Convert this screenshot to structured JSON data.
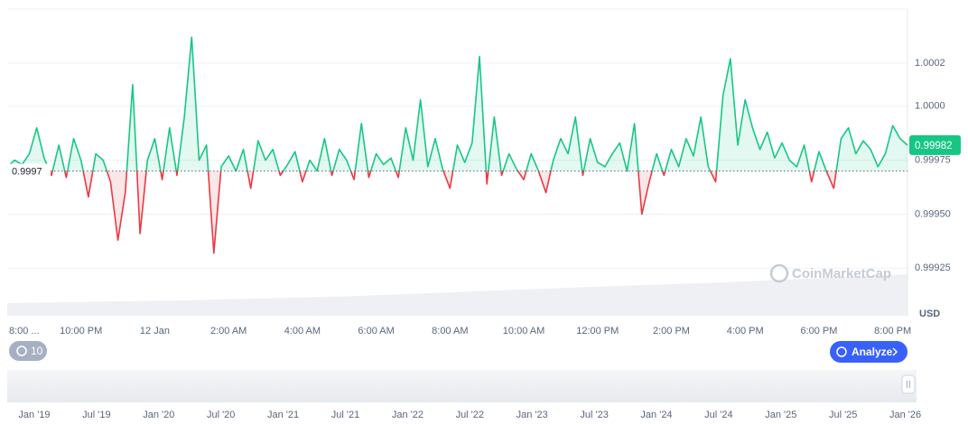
{
  "chart_data": {
    "type": "line",
    "categories": [
      "8:00 ...",
      null,
      null,
      null,
      null,
      null,
      null,
      null,
      null,
      null,
      "10:00 PM",
      null,
      null,
      null,
      null,
      null,
      null,
      null,
      null,
      null,
      "12 Jan",
      null,
      null,
      null,
      null,
      null,
      null,
      null,
      null,
      null,
      "2:00 AM",
      null,
      null,
      null,
      null,
      null,
      null,
      null,
      null,
      null,
      "4:00 AM",
      null,
      null,
      null,
      null,
      null,
      null,
      null,
      null,
      null,
      "6:00 AM",
      null,
      null,
      null,
      null,
      null,
      null,
      null,
      null,
      null,
      "8:00 AM",
      null,
      null,
      null,
      null,
      null,
      null,
      null,
      null,
      null,
      "10:00 AM",
      null,
      null,
      null,
      null,
      null,
      null,
      null,
      null,
      null,
      "12:00 PM",
      null,
      null,
      null,
      null,
      null,
      null,
      null,
      null,
      null,
      "2:00 PM",
      null,
      null,
      null,
      null,
      null,
      null,
      null,
      null,
      null,
      "4:00 PM",
      null,
      null,
      null,
      null,
      null,
      null,
      null,
      null,
      null,
      "6:00 PM",
      null,
      null,
      null,
      null,
      null,
      null,
      null,
      null,
      null,
      "8:00 PM",
      null,
      null
    ],
    "values": [
      0.99972,
      0.99975,
      0.99973,
      0.99978,
      0.9999,
      0.99976,
      0.99968,
      0.99982,
      0.99967,
      0.99985,
      0.99975,
      0.99958,
      0.99978,
      0.99975,
      0.99965,
      0.99938,
      0.9996,
      1.0001,
      0.99941,
      0.99975,
      0.99985,
      0.99966,
      0.9999,
      0.99968,
      0.99995,
      1.00032,
      0.99975,
      0.99982,
      0.99932,
      0.99972,
      0.99977,
      0.9997,
      0.9998,
      0.99962,
      0.99984,
      0.99975,
      0.9998,
      0.99968,
      0.99973,
      0.99979,
      0.99965,
      0.99975,
      0.9997,
      0.99985,
      0.99968,
      0.9998,
      0.99975,
      0.99966,
      0.99992,
      0.99967,
      0.99978,
      0.99973,
      0.99976,
      0.99967,
      0.9999,
      0.99975,
      1.00003,
      0.99972,
      0.99985,
      0.99971,
      0.99962,
      0.99982,
      0.99974,
      0.99983,
      1.00023,
      0.99964,
      0.99995,
      0.99968,
      0.99978,
      0.99971,
      0.99966,
      0.99978,
      0.9997,
      0.9996,
      0.99975,
      0.99985,
      0.99978,
      0.99995,
      0.99968,
      0.99985,
      0.99974,
      0.99972,
      0.99978,
      0.99983,
      0.9997,
      0.99992,
      0.9995,
      0.99965,
      0.99978,
      0.99968,
      0.9998,
      0.99972,
      0.99985,
      0.99977,
      0.99995,
      0.99972,
      0.99965,
      1.00005,
      1.00022,
      0.99982,
      1.00003,
      0.9999,
      0.9998,
      0.99988,
      0.99976,
      0.99983,
      0.99975,
      0.99972,
      0.99982,
      0.99965,
      0.99979,
      0.9997,
      0.99962,
      0.99985,
      0.9999,
      0.99978,
      0.99984,
      0.9998,
      0.99972,
      0.99978,
      0.99991,
      0.99985,
      0.99982
    ],
    "baseline": 0.9997,
    "above_color": "#16c784",
    "below_color": "#ea3943",
    "ylim": [
      0.99903,
      1.00045
    ],
    "yticks": [
      1.0002,
      {
        "value": 1,
        "label": "1.0000"
      },
      0.99975,
      {
        "value": 0.9995,
        "label": "0.99950"
      },
      0.99925
    ],
    "ylabel": "USD",
    "grid": true
  },
  "ui": {
    "history_badge": "10",
    "analyze": "Analyze",
    "watermark": "CoinMarketCap"
  },
  "navigator": {
    "labels": [
      "Jan '19",
      "Jul '19",
      "Jan '20",
      "Jul '20",
      "Jan '21",
      "Jul '21",
      "Jan '22",
      "Jul '22",
      "Jan '23",
      "Jul '23",
      "Jan '24",
      "Jul '24",
      "Jan '25",
      "Jul '25",
      "Jan '26"
    ]
  }
}
